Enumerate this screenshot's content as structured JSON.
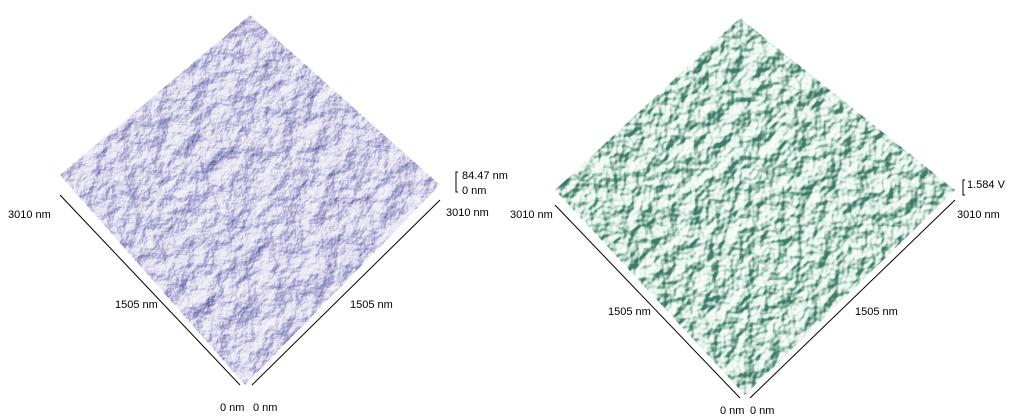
{
  "panels": [
    {
      "axis_labels": {
        "left_max": "3010 nm",
        "left_mid": "1505 nm",
        "left_min": "0 nm",
        "right_min": "0 nm",
        "right_mid": "1505 nm",
        "right_max": "3010 nm"
      },
      "z_scale": {
        "max": "84.47 nm",
        "min": "0 nm"
      }
    },
    {
      "axis_labels": {
        "left_max": "3010 nm",
        "left_mid": "1505 nm",
        "left_min": "0 nm",
        "right_min": "0 nm",
        "right_mid": "1505 nm",
        "right_max": "3010 nm"
      },
      "z_scale": {
        "max": "1.584 V"
      }
    }
  ]
}
